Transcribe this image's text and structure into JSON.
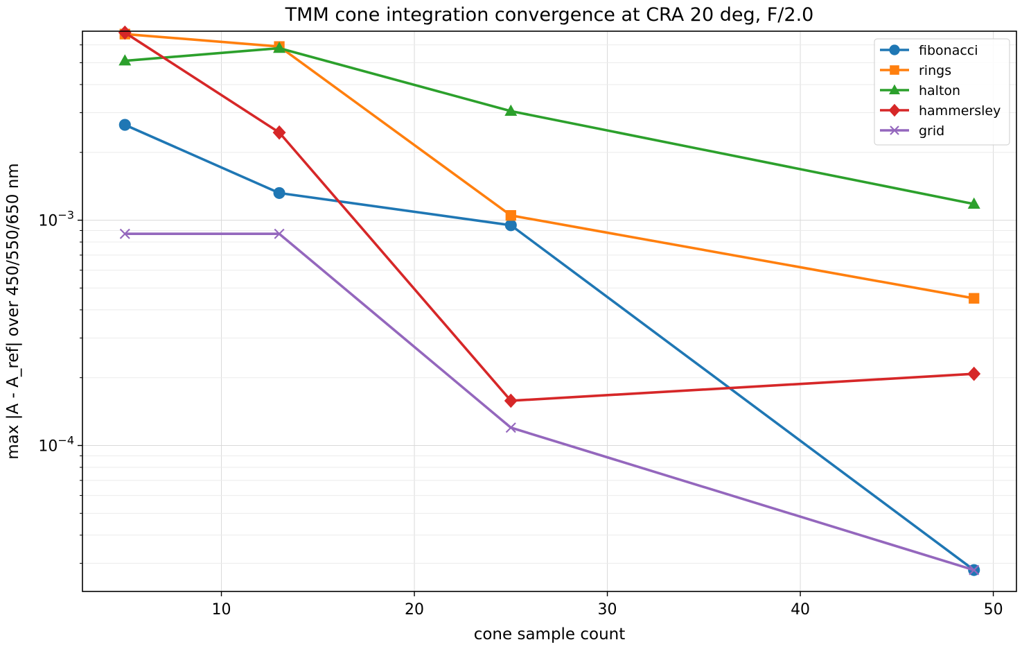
{
  "chart_data": {
    "type": "line",
    "title": "TMM cone integration convergence at CRA 20 deg, F/2.0",
    "xlabel": "cone sample count",
    "ylabel": "max |A - A_ref| over 450/550/650 nm",
    "x": [
      5,
      13,
      25,
      49
    ],
    "xlim": [
      2.8,
      51.2
    ],
    "ylim": [
      2.25e-05,
      0.0069
    ],
    "yscale": "log",
    "grid": true,
    "legend_position": "top-right",
    "x_ticks": [
      10,
      20,
      30,
      40,
      50
    ],
    "x_tick_labels": [
      "10",
      "20",
      "30",
      "40",
      "50"
    ],
    "y_major_ticks": [
      0.0001,
      0.001
    ],
    "y_tick_labels": [
      {
        "base": "10",
        "exp": "−4"
      },
      {
        "base": "10",
        "exp": "−3"
      }
    ],
    "series": [
      {
        "name": "fibonacci",
        "color": "#1f77b4",
        "marker": "circle",
        "values": [
          0.00265,
          0.00132,
          0.00095,
          2.8e-05
        ]
      },
      {
        "name": "rings",
        "color": "#ff7f0e",
        "marker": "square",
        "values": [
          0.0067,
          0.0059,
          0.00105,
          0.00045
        ]
      },
      {
        "name": "halton",
        "color": "#2ca02c",
        "marker": "triangle",
        "values": [
          0.0051,
          0.0058,
          0.00305,
          0.00118
        ]
      },
      {
        "name": "hammersley",
        "color": "#d62728",
        "marker": "diamond",
        "values": [
          0.0068,
          0.00245,
          0.000158,
          0.000208
        ]
      },
      {
        "name": "grid",
        "color": "#9467bd",
        "marker": "x",
        "values": [
          0.00087,
          0.00087,
          0.00012,
          2.8e-05
        ]
      }
    ]
  }
}
